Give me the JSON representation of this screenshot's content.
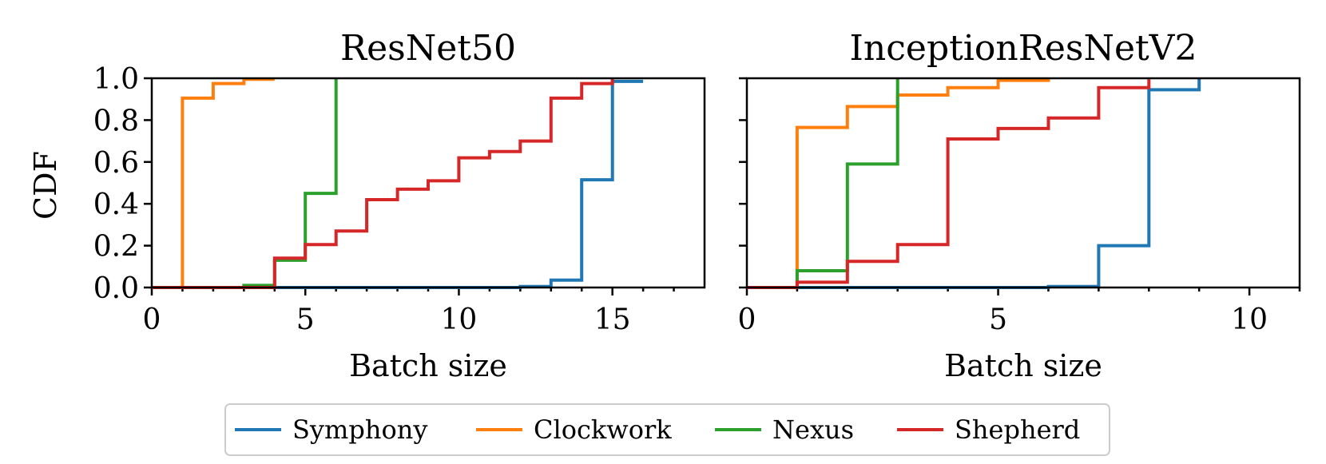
{
  "legend": {
    "placement": "bottom-center",
    "entries": [
      {
        "name": "Symphony",
        "color": "#1f77b4"
      },
      {
        "name": "Clockwork",
        "color": "#ff7f0e"
      },
      {
        "name": "Nexus",
        "color": "#2ca02c"
      },
      {
        "name": "Shepherd",
        "color": "#d62728"
      }
    ]
  },
  "chart_data": [
    {
      "type": "line",
      "step": true,
      "title": "ResNet50",
      "xlabel": "Batch size",
      "ylabel": "CDF",
      "xlim": [
        0,
        18
      ],
      "ylim": [
        0,
        1
      ],
      "xticks": [
        0,
        5,
        10,
        15
      ],
      "xticks_minor": [
        1,
        2,
        3,
        4,
        6,
        7,
        8,
        9,
        11,
        12,
        13,
        14,
        16,
        17
      ],
      "yticks": [
        0.0,
        0.2,
        0.4,
        0.6,
        0.8,
        1.0
      ],
      "ytick_labels": [
        "0.0",
        "0.2",
        "0.4",
        "0.6",
        "0.8",
        "1.0"
      ],
      "grid": false,
      "series": [
        {
          "name": "Symphony",
          "color": "#1f77b4",
          "x": [
            0,
            12,
            13,
            14,
            15,
            16
          ],
          "y": [
            0,
            0.005,
            0.035,
            0.515,
            0.985,
            0.985
          ]
        },
        {
          "name": "Clockwork",
          "color": "#ff7f0e",
          "x": [
            0,
            1,
            2,
            3,
            4
          ],
          "y": [
            0,
            0.905,
            0.975,
            0.995,
            0.995
          ]
        },
        {
          "name": "Nexus",
          "color": "#2ca02c",
          "x": [
            0,
            3,
            4,
            5,
            6
          ],
          "y": [
            0,
            0.01,
            0.13,
            0.45,
            1.0
          ]
        },
        {
          "name": "Shepherd",
          "color": "#d62728",
          "x": [
            0,
            4,
            5,
            6,
            7,
            8,
            9,
            10,
            11,
            12,
            13,
            14,
            15
          ],
          "y": [
            0,
            0.14,
            0.205,
            0.27,
            0.42,
            0.47,
            0.51,
            0.62,
            0.65,
            0.7,
            0.905,
            0.975,
            1.0
          ]
        }
      ]
    },
    {
      "type": "line",
      "step": true,
      "title": "InceptionResNetV2",
      "xlabel": "Batch size",
      "ylabel": "",
      "xlim": [
        0,
        11
      ],
      "ylim": [
        0,
        1
      ],
      "xticks": [
        0,
        5,
        10
      ],
      "xticks_minor": [
        1,
        2,
        3,
        4,
        6,
        7,
        8,
        9,
        11
      ],
      "yticks": [
        0.0,
        0.2,
        0.4,
        0.6,
        0.8,
        1.0
      ],
      "ytick_labels": [],
      "grid": false,
      "series": [
        {
          "name": "Symphony",
          "color": "#1f77b4",
          "x": [
            0,
            6,
            7,
            8,
            9
          ],
          "y": [
            0,
            0.005,
            0.2,
            0.945,
            1.0
          ]
        },
        {
          "name": "Clockwork",
          "color": "#ff7f0e",
          "x": [
            0,
            1,
            2,
            3,
            4,
            5,
            6
          ],
          "y": [
            0,
            0.765,
            0.865,
            0.92,
            0.955,
            0.99,
            0.995
          ]
        },
        {
          "name": "Nexus",
          "color": "#2ca02c",
          "x": [
            0,
            1,
            2,
            3
          ],
          "y": [
            0,
            0.08,
            0.59,
            1.0
          ]
        },
        {
          "name": "Shepherd",
          "color": "#d62728",
          "x": [
            0,
            1,
            2,
            3,
            4,
            5,
            6,
            7,
            8
          ],
          "y": [
            0,
            0.025,
            0.125,
            0.205,
            0.71,
            0.76,
            0.81,
            0.955,
            0.995
          ]
        }
      ]
    }
  ]
}
